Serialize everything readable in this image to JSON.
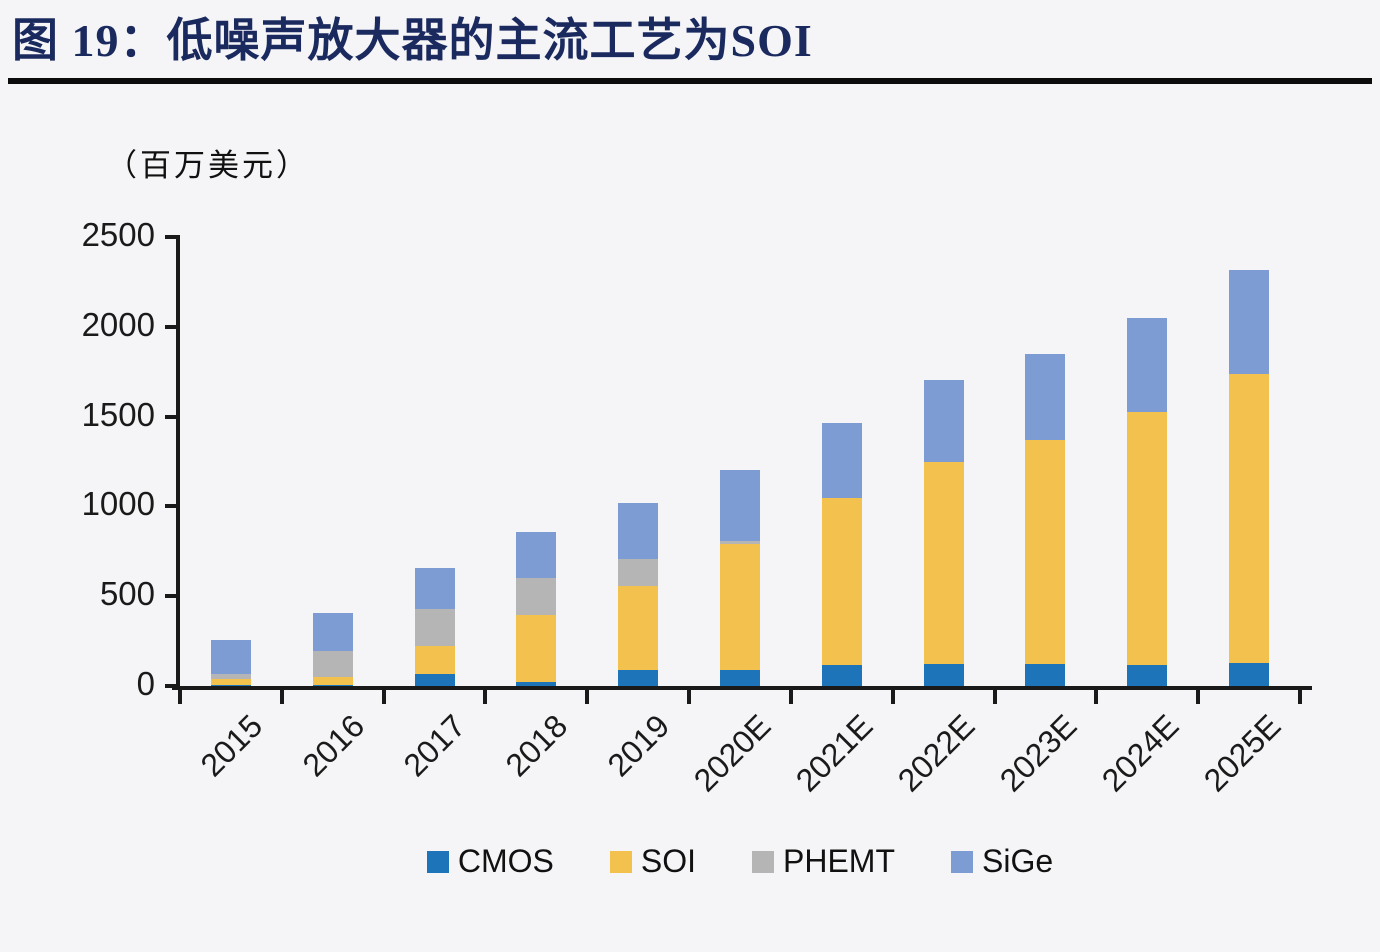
{
  "figure": {
    "title": "图 19：低噪声放大器的主流工艺为SOI",
    "unit_label": "（百万美元）"
  },
  "chart_data": {
    "type": "bar",
    "stacked": true,
    "title": "图 19：低噪声放大器的主流工艺为SOI",
    "ylabel": "（百万美元）",
    "xlabel": "",
    "categories": [
      "2015",
      "2016",
      "2017",
      "2018",
      "2019",
      "2020E",
      "2021E",
      "2022E",
      "2023E",
      "2024E",
      "2025E"
    ],
    "series": [
      {
        "name": "CMOS",
        "color": "#1e74b8",
        "values": [
          5,
          5,
          65,
          25,
          90,
          90,
          115,
          120,
          120,
          115,
          130
        ]
      },
      {
        "name": "SOI",
        "color": "#f2c14e",
        "values": [
          35,
          45,
          160,
          370,
          465,
          700,
          930,
          1130,
          1250,
          1410,
          1610
        ]
      },
      {
        "name": "PHEMT",
        "color": "#b5b5b5",
        "values": [
          25,
          145,
          205,
          205,
          155,
          15,
          0,
          0,
          0,
          0,
          0
        ]
      },
      {
        "name": "SiGe",
        "color": "#7d9cd3",
        "values": [
          190,
          210,
          225,
          260,
          310,
          400,
          420,
          455,
          480,
          525,
          575
        ]
      }
    ],
    "totals": [
      255,
      405,
      655,
      860,
      1020,
      1205,
      1465,
      1705,
      1850,
      2050,
      2315
    ],
    "ylim": [
      0,
      2500
    ],
    "yticks": [
      "0",
      "500",
      "1000",
      "1500",
      "2000",
      "2500"
    ],
    "grid": false,
    "legend_position": "bottom"
  },
  "colors": {
    "title_navy": "#1a2a5e",
    "axis_black": "#1a1a1a",
    "rule_black": "#0c0c0c",
    "background": "#f5f5f7"
  }
}
